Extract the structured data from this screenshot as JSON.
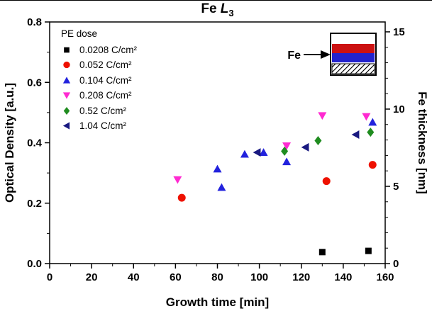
{
  "title": {
    "prefix": "Fe ",
    "symbol": "L",
    "subscript": "3"
  },
  "chart_data": {
    "type": "scatter",
    "title": "Fe L3",
    "xlabel": "Growth time [min]",
    "ylabel": "Optical Density [a.u.]",
    "y2label": "Fe thickness [nm]",
    "xlim": [
      0,
      160
    ],
    "ylim": [
      0,
      0.8
    ],
    "y2lim": [
      0,
      15.64
    ],
    "xticks": [
      0,
      20,
      40,
      60,
      80,
      100,
      120,
      140,
      160
    ],
    "yticks": [
      0.0,
      0.2,
      0.4,
      0.6,
      0.8
    ],
    "y2ticks": [
      0,
      5,
      10,
      15
    ],
    "x_minor_step": 10,
    "y_minor_step": 0.1,
    "y2_minor_step": 1,
    "grid": false,
    "legend_title": "PE dose",
    "legend_position": "top-left",
    "series": [
      {
        "name": "0.0208 C/cm²",
        "marker": "square",
        "color": "#000000",
        "points": [
          [
            130,
            0.038
          ],
          [
            152,
            0.042
          ]
        ]
      },
      {
        "name": "0.052 C/cm²",
        "marker": "circle",
        "color": "#ee1100",
        "points": [
          [
            63,
            0.218
          ],
          [
            132,
            0.273
          ],
          [
            154,
            0.327
          ]
        ]
      },
      {
        "name": "0.104 C/cm²",
        "marker": "triangle-up",
        "color": "#2222dd",
        "points": [
          [
            80,
            0.313
          ],
          [
            82,
            0.252
          ],
          [
            93,
            0.362
          ],
          [
            102,
            0.368
          ],
          [
            113,
            0.337
          ],
          [
            154,
            0.468
          ]
        ]
      },
      {
        "name": "0.208 C/cm²",
        "marker": "triangle-down",
        "color": "#ff2ad1",
        "points": [
          [
            61,
            0.278
          ],
          [
            113,
            0.39
          ],
          [
            130,
            0.49
          ],
          [
            151,
            0.487
          ]
        ]
      },
      {
        "name": "0.52 C/cm²",
        "marker": "diamond",
        "color": "#1f8c1f",
        "points": [
          [
            112,
            0.372
          ],
          [
            128,
            0.407
          ],
          [
            153,
            0.435
          ]
        ]
      },
      {
        "name": "1.04 C/cm²",
        "marker": "triangle-left",
        "color": "#191980",
        "points": [
          [
            99,
            0.368
          ],
          [
            122,
            0.385
          ],
          [
            146,
            0.427
          ]
        ]
      }
    ],
    "inset": {
      "label": "Fe",
      "layer_colors": {
        "top": "#ffffff",
        "fe": "#cc1111",
        "middle": "#2222cc",
        "substrate": "hatched"
      }
    }
  }
}
